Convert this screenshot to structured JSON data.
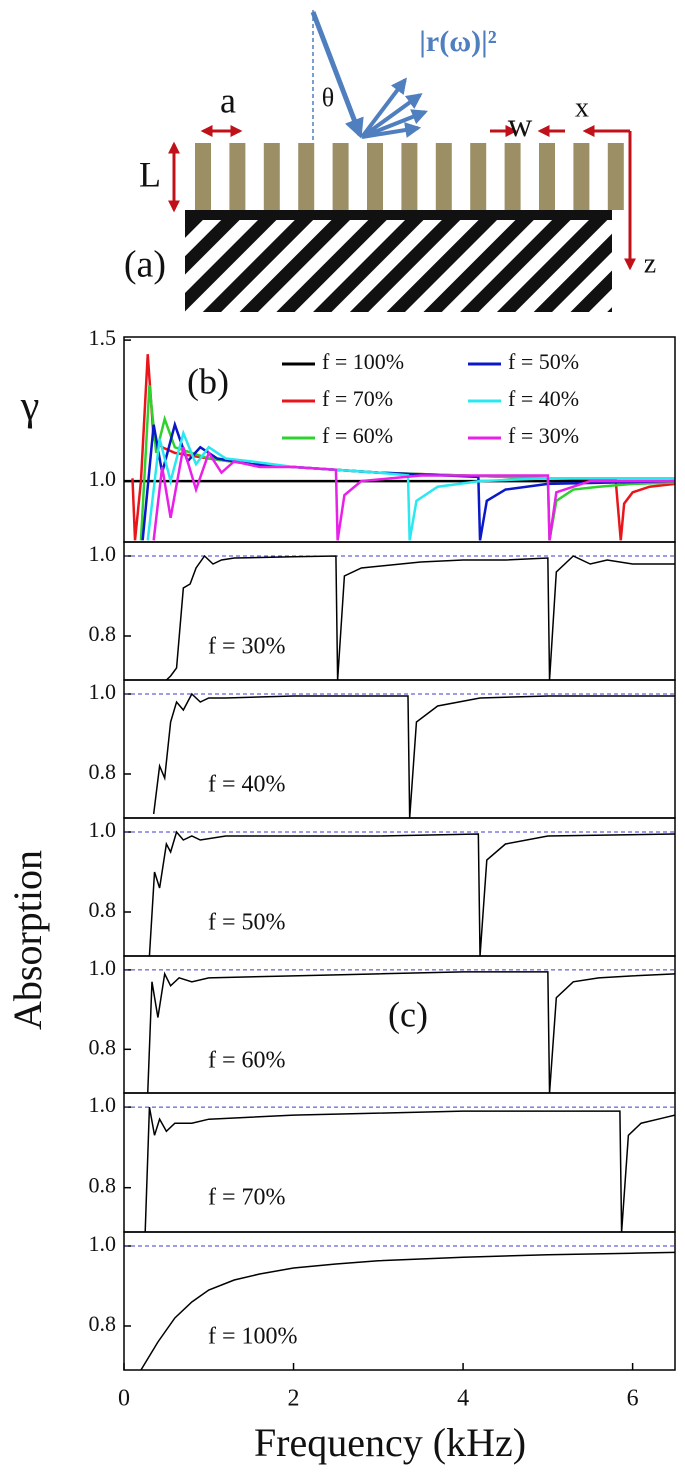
{
  "schematic": {
    "panel": "(a)",
    "period": "a",
    "angle": "θ",
    "reflectance": "|r(ω)|²",
    "width": "w",
    "height": "L",
    "x_axis": "x",
    "z_axis": "z"
  },
  "chart_data": [
    {
      "type": "line",
      "panel": "(b)",
      "ylabel": "γ",
      "xlim": [
        0,
        6.5
      ],
      "ylim": [
        0.784,
        1.511
      ],
      "yticks": [
        {
          "value": 1,
          "label": "1.0"
        },
        1.5
      ],
      "series": [
        {
          "name": "f = 100%",
          "color": "#000000",
          "x": [
            0,
            6.5
          ],
          "values": [
            1,
            1
          ]
        },
        {
          "name": "f = 70%",
          "color": "#e8161b",
          "x": [
            0.1,
            0.13,
            0.2,
            0.28,
            0.35,
            0.45,
            0.6,
            0.8,
            1.0,
            1.5,
            2,
            3,
            4,
            5,
            5.8,
            5.86,
            5.9,
            6.0,
            6.2,
            6.5
          ],
          "values": [
            1.01,
            0.79,
            1.0,
            1.45,
            1.15,
            1.12,
            1.1,
            1.09,
            1.08,
            1.06,
            1.05,
            1.03,
            1.02,
            1.01,
            1.005,
            0.79,
            0.92,
            0.96,
            0.98,
            0.99
          ]
        },
        {
          "name": "f = 60%",
          "color": "#2fd12f",
          "x": [
            0.2,
            0.3,
            0.38,
            0.48,
            0.6,
            0.8,
            1,
            1.5,
            2,
            3,
            4,
            5,
            5.02,
            5.1,
            5.3,
            5.6,
            6,
            6.5
          ],
          "values": [
            0.79,
            1.34,
            1.1,
            1.22,
            1.12,
            1.1,
            1.08,
            1.06,
            1.05,
            1.03,
            1.02,
            1.01,
            0.79,
            0.93,
            0.97,
            0.98,
            0.99,
            0.995
          ]
        },
        {
          "name": "f = 50%",
          "color": "#0a18c8",
          "x": [
            0.22,
            0.35,
            0.45,
            0.6,
            0.75,
            0.9,
            1.1,
            1.5,
            2,
            3,
            4.18,
            4.2,
            4.28,
            4.5,
            5,
            6.5
          ],
          "values": [
            0.79,
            1.2,
            1.03,
            1.2,
            1.07,
            1.12,
            1.08,
            1.06,
            1.05,
            1.03,
            1.015,
            0.79,
            0.93,
            0.97,
            0.99,
            1.0
          ]
        },
        {
          "name": "f = 40%",
          "color": "#2ae8f0",
          "x": [
            0.28,
            0.42,
            0.55,
            0.7,
            0.85,
            1.0,
            1.2,
            1.5,
            2,
            3,
            3.35,
            3.37,
            3.45,
            3.7,
            4.2,
            5,
            6.5
          ],
          "values": [
            0.79,
            1.15,
            1.0,
            1.17,
            1.06,
            1.12,
            1.08,
            1.07,
            1.05,
            1.03,
            1.02,
            0.79,
            0.93,
            0.98,
            1.0,
            1.01,
            1.01
          ]
        },
        {
          "name": "f = 30%",
          "color": "#e820e8",
          "x": [
            0.35,
            0.45,
            0.55,
            0.7,
            0.85,
            1.0,
            1.15,
            1.3,
            1.6,
            2,
            2.5,
            2.52,
            2.6,
            2.8,
            3.5,
            4,
            5,
            5.02,
            5.1,
            5.5,
            6.5
          ],
          "values": [
            0.79,
            1.05,
            0.87,
            1.12,
            0.97,
            1.1,
            1.03,
            1.07,
            1.05,
            1.05,
            1.04,
            0.79,
            0.95,
            1.0,
            1.02,
            1.02,
            1.02,
            0.79,
            0.96,
            1.0,
            1.0
          ]
        }
      ]
    },
    {
      "type": "line",
      "ylabel": "Absorption",
      "annotation": "f = 30%",
      "color": "#000000",
      "reference_line": 1,
      "xlim": [
        0,
        6.5
      ],
      "ylim": [
        0.69,
        1.035
      ],
      "yticks": [
        0.8,
        {
          "value": 1,
          "label": "1.0"
        }
      ],
      "x": [
        0.5,
        0.55,
        0.62,
        0.7,
        0.78,
        0.85,
        0.95,
        1.05,
        1.15,
        1.3,
        2,
        2.5,
        2.52,
        2.6,
        2.8,
        3.5,
        4,
        4.5,
        5,
        5.02,
        5.1,
        5.3,
        5.5,
        5.7,
        6,
        6.5
      ],
      "values": [
        0.69,
        0.7,
        0.72,
        0.92,
        0.93,
        0.97,
        1.0,
        0.98,
        0.99,
        0.995,
        0.998,
        1.0,
        0.69,
        0.95,
        0.97,
        0.985,
        0.99,
        0.99,
        0.995,
        0.69,
        0.96,
        1.0,
        0.98,
        0.99,
        0.98,
        0.98
      ]
    },
    {
      "type": "line",
      "annotation": "f = 40%",
      "color": "#000000",
      "reference_line": 1,
      "xlim": [
        0,
        6.5
      ],
      "ylim": [
        0.69,
        1.035
      ],
      "yticks": [
        0.8,
        {
          "value": 1,
          "label": "1.0"
        }
      ],
      "x": [
        0.35,
        0.42,
        0.48,
        0.55,
        0.62,
        0.7,
        0.8,
        0.9,
        1.0,
        1.2,
        2,
        3,
        3.35,
        3.37,
        3.45,
        3.7,
        4.2,
        5,
        6.5
      ],
      "values": [
        0.7,
        0.82,
        0.79,
        0.93,
        0.98,
        0.96,
        1.0,
        0.98,
        0.99,
        0.99,
        0.995,
        0.995,
        0.995,
        0.69,
        0.93,
        0.97,
        0.99,
        0.995,
        0.995
      ]
    },
    {
      "type": "line",
      "annotation": "f = 50%",
      "color": "#000000",
      "reference_line": 1,
      "xlim": [
        0,
        6.5
      ],
      "ylim": [
        0.69,
        1.035
      ],
      "yticks": [
        0.8,
        {
          "value": 1,
          "label": "1.0"
        }
      ],
      "x": [
        0.3,
        0.36,
        0.42,
        0.5,
        0.55,
        0.62,
        0.7,
        0.8,
        0.9,
        1.2,
        2,
        3,
        4.18,
        4.2,
        4.28,
        4.5,
        5,
        6.5
      ],
      "values": [
        0.69,
        0.9,
        0.86,
        0.97,
        0.95,
        1.0,
        0.98,
        0.99,
        0.98,
        0.99,
        0.99,
        0.99,
        0.995,
        0.69,
        0.93,
        0.97,
        0.99,
        0.995
      ]
    },
    {
      "type": "line",
      "annotation": "f = 60%",
      "panel": "(c)",
      "color": "#000000",
      "reference_line": 1,
      "xlim": [
        0,
        6.5
      ],
      "ylim": [
        0.69,
        1.035
      ],
      "yticks": [
        0.8,
        {
          "value": 1,
          "label": "1.0"
        }
      ],
      "x": [
        0.28,
        0.33,
        0.4,
        0.48,
        0.55,
        0.65,
        0.8,
        1,
        2,
        3,
        4,
        5,
        5.02,
        5.1,
        5.3,
        5.6,
        6,
        6.5
      ],
      "values": [
        0.69,
        0.97,
        0.88,
        0.99,
        0.96,
        0.98,
        0.97,
        0.98,
        0.985,
        0.99,
        0.995,
        0.995,
        0.69,
        0.93,
        0.97,
        0.98,
        0.985,
        0.99
      ]
    },
    {
      "type": "line",
      "annotation": "f = 70%",
      "color": "#000000",
      "reference_line": 1,
      "xlim": [
        0,
        6.5
      ],
      "ylim": [
        0.69,
        1.035
      ],
      "yticks": [
        0.8,
        {
          "value": 1,
          "label": "1.0"
        }
      ],
      "x": [
        0.25,
        0.3,
        0.36,
        0.42,
        0.5,
        0.6,
        0.8,
        1,
        2,
        3,
        4,
        5,
        5.85,
        5.87,
        5.95,
        6.1,
        6.3,
        6.5
      ],
      "values": [
        0.69,
        1.0,
        0.93,
        0.97,
        0.94,
        0.96,
        0.96,
        0.97,
        0.98,
        0.985,
        0.99,
        0.99,
        0.99,
        0.69,
        0.93,
        0.96,
        0.97,
        0.98
      ]
    },
    {
      "type": "line",
      "annotation": "f = 100%",
      "color": "#000000",
      "reference_line": 1,
      "xlabel": "Frequency (kHz)",
      "xlim": [
        0,
        6.5
      ],
      "ylim": [
        0.69,
        1.035
      ],
      "yticks": [
        0.8,
        {
          "value": 1,
          "label": "1.0"
        }
      ],
      "xticks": [
        0,
        2,
        4,
        6
      ],
      "x": [
        0.2,
        0.4,
        0.6,
        0.8,
        1,
        1.3,
        1.6,
        2,
        2.5,
        3,
        4,
        5,
        6,
        6.5
      ],
      "values": [
        0.69,
        0.76,
        0.82,
        0.86,
        0.89,
        0.915,
        0.93,
        0.945,
        0.955,
        0.963,
        0.972,
        0.978,
        0.982,
        0.984
      ]
    }
  ]
}
